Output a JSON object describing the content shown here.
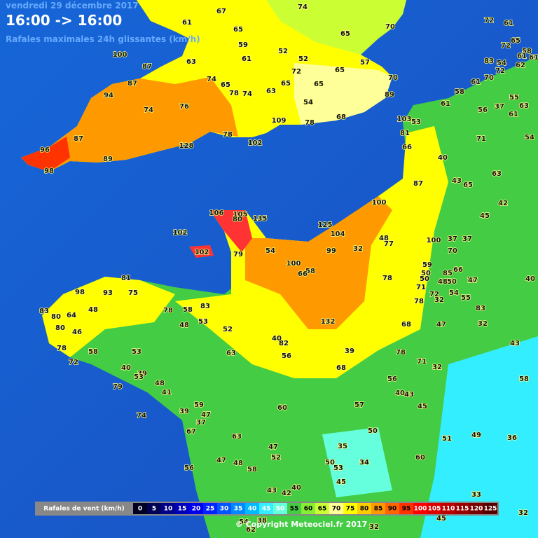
{
  "header": {
    "date": "vendredi 29 décembre 2017",
    "period": "16:00 -> 16:00",
    "subtitle": "Rafales maximales 24h glissantes (km/h)"
  },
  "stations": {
    "values": [
      67,
      74,
      61,
      65,
      65,
      70,
      59,
      52,
      100,
      61,
      52,
      57,
      87,
      63,
      72,
      65,
      70,
      87,
      74,
      65,
      78,
      74,
      63,
      65,
      65,
      94,
      89,
      54,
      74,
      76,
      109,
      78,
      68,
      87,
      78,
      96,
      89,
      128,
      102,
      98,
      72,
      61,
      65,
      72,
      58,
      61,
      61,
      83,
      54,
      72,
      62,
      70,
      61,
      58,
      55,
      37,
      56,
      61,
      63,
      61,
      103,
      53,
      81,
      71,
      54,
      66,
      40,
      63,
      43,
      65,
      87,
      42,
      100,
      45,
      106,
      105,
      80,
      135,
      102,
      125,
      104,
      102,
      79,
      54,
      99,
      32,
      48,
      77,
      100,
      37,
      37,
      70,
      59,
      50,
      100,
      58,
      66,
      85,
      66,
      50,
      74,
      78,
      48,
      50,
      81,
      98,
      93,
      75,
      71,
      72,
      54,
      32,
      78,
      55,
      47,
      40,
      83,
      83,
      48,
      78,
      58,
      83,
      80,
      64,
      47,
      32,
      80,
      46,
      48,
      53,
      132,
      68,
      52,
      40,
      82,
      43,
      78,
      58,
      53,
      63,
      39,
      78,
      56,
      72,
      71,
      32,
      40,
      39,
      53,
      68,
      58,
      48,
      41,
      79,
      56,
      43,
      40,
      59,
      57,
      45,
      39,
      47,
      60,
      37,
      74,
      67,
      63,
      50,
      51,
      49,
      36,
      35,
      47,
      52,
      47,
      48,
      58,
      50,
      53,
      34,
      60,
      56,
      45,
      43,
      40,
      42,
      33,
      38,
      54,
      62,
      32,
      45,
      32
    ]
  },
  "legend": {
    "title": "Rafales de vent (km/h)",
    "values": [
      0,
      5,
      10,
      15,
      20,
      25,
      30,
      35,
      40,
      45,
      50,
      55,
      60,
      65,
      70,
      75,
      80,
      85,
      90,
      95,
      100,
      105,
      110,
      115,
      120,
      125
    ],
    "colors": [
      "#000022",
      "#000055",
      "#000088",
      "#0000bb",
      "#0000ee",
      "#0022ff",
      "#0055ff",
      "#0088ff",
      "#00bbff",
      "#33eeff",
      "#66ffdd",
      "#44cc44",
      "#88ee33",
      "#ccff33",
      "#ffff99",
      "#ffff00",
      "#ffcc00",
      "#ff9900",
      "#ff6600",
      "#ff3300",
      "#ff0000",
      "#dd0000",
      "#bb0000",
      "#990000",
      "#770000",
      "#550000"
    ]
  },
  "footer": {
    "copyright": "© Copyright Meteociel.fr 2017"
  }
}
